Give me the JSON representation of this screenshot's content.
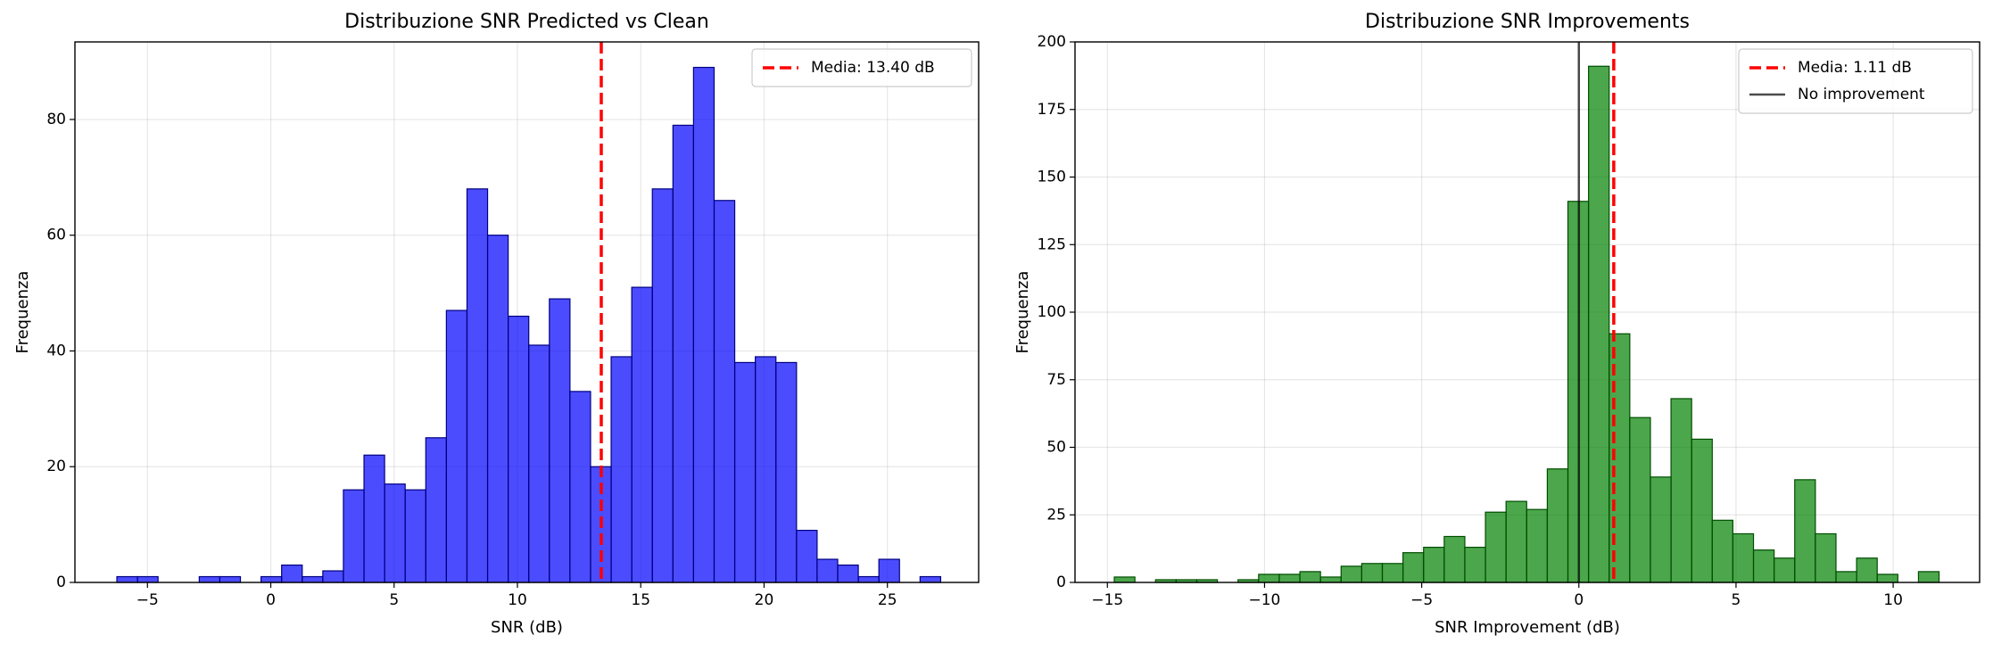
{
  "chart_data": [
    {
      "type": "histogram",
      "title": "Distribuzione SNR Predicted vs Clean",
      "xlabel": "SNR (dB)",
      "ylabel": "Frequenza",
      "bins": [
        -6.24,
        -5.405,
        -4.57,
        -3.735,
        -2.9,
        -2.065,
        -1.23,
        -0.395,
        0.44,
        1.275,
        2.11,
        2.945,
        3.78,
        4.615,
        5.45,
        6.285,
        7.12,
        7.955,
        8.79,
        9.625,
        10.46,
        11.295,
        12.13,
        12.965,
        13.8,
        14.635,
        15.47,
        16.305,
        17.14,
        17.975,
        18.81,
        19.645,
        20.48,
        21.315,
        22.15,
        22.985,
        23.82,
        24.655,
        25.49,
        26.325,
        27.16
      ],
      "values": [
        1,
        1,
        0,
        0,
        1,
        1,
        0,
        1,
        3,
        1,
        2,
        16,
        22,
        17,
        16,
        25,
        47,
        68,
        60,
        46,
        41,
        49,
        33,
        20,
        39,
        51,
        68,
        79,
        89,
        66,
        38,
        39,
        38,
        9,
        4,
        3,
        1,
        4,
        0,
        1
      ],
      "color": "#0000ff",
      "edgecolor": "#000080",
      "xlim": [
        -7.94,
        28.7
      ],
      "ylim": [
        0,
        93.4
      ],
      "xticks": [
        {
          "value": -5,
          "label": "−5"
        },
        0,
        5,
        10,
        15,
        20,
        25
      ],
      "yticks": [
        0,
        20,
        40,
        60,
        80
      ],
      "grid": true,
      "legend": "upper right",
      "ref_lines": [
        {
          "value": 13.4,
          "label": "Media: 13.40 dB",
          "color": "#ff0000",
          "dashed": true
        }
      ]
    },
    {
      "type": "histogram",
      "title": "Distribuzione SNR Improvements",
      "xlabel": "SNR Improvement (dB)",
      "ylabel": "Frequenza",
      "bins": [
        -14.78,
        -14.124,
        -13.468,
        -12.812,
        -12.156,
        -11.5,
        -10.844,
        -10.188,
        -9.532,
        -8.876,
        -8.22,
        -7.564,
        -6.908,
        -6.252,
        -5.596,
        -4.94,
        -4.284,
        -3.628,
        -2.972,
        -2.316,
        -1.66,
        -1.004,
        -0.348,
        0.308,
        0.964,
        1.62,
        2.276,
        2.932,
        3.588,
        4.244,
        4.9,
        5.556,
        6.212,
        6.868,
        7.524,
        8.18,
        8.836,
        9.492,
        10.148,
        10.804,
        11.46
      ],
      "values": [
        2,
        0,
        1,
        1,
        1,
        0,
        1,
        3,
        3,
        4,
        2,
        6,
        7,
        7,
        11,
        13,
        17,
        13,
        26,
        30,
        27,
        42,
        141,
        191,
        92,
        61,
        39,
        68,
        53,
        23,
        18,
        12,
        9,
        38,
        18,
        4,
        9,
        3,
        0,
        4
      ],
      "color": "#008000",
      "edgecolor": "#004d00",
      "xlim": [
        -16.03,
        12.75
      ],
      "ylim": [
        0,
        200
      ],
      "xticks": [
        {
          "value": -15,
          "label": "−15"
        },
        {
          "value": -10,
          "label": "−10"
        },
        {
          "value": -5,
          "label": "−5"
        },
        0,
        5,
        10
      ],
      "yticks": [
        0,
        25,
        50,
        75,
        100,
        125,
        150,
        175,
        200
      ],
      "grid": true,
      "legend": "upper right",
      "ref_lines": [
        {
          "value": 1.11,
          "label": "Media: 1.11 dB",
          "color": "#ff0000",
          "dashed": true
        },
        {
          "value": 0,
          "label": "No improvement",
          "color": "#000000",
          "dashed": false
        }
      ]
    }
  ]
}
